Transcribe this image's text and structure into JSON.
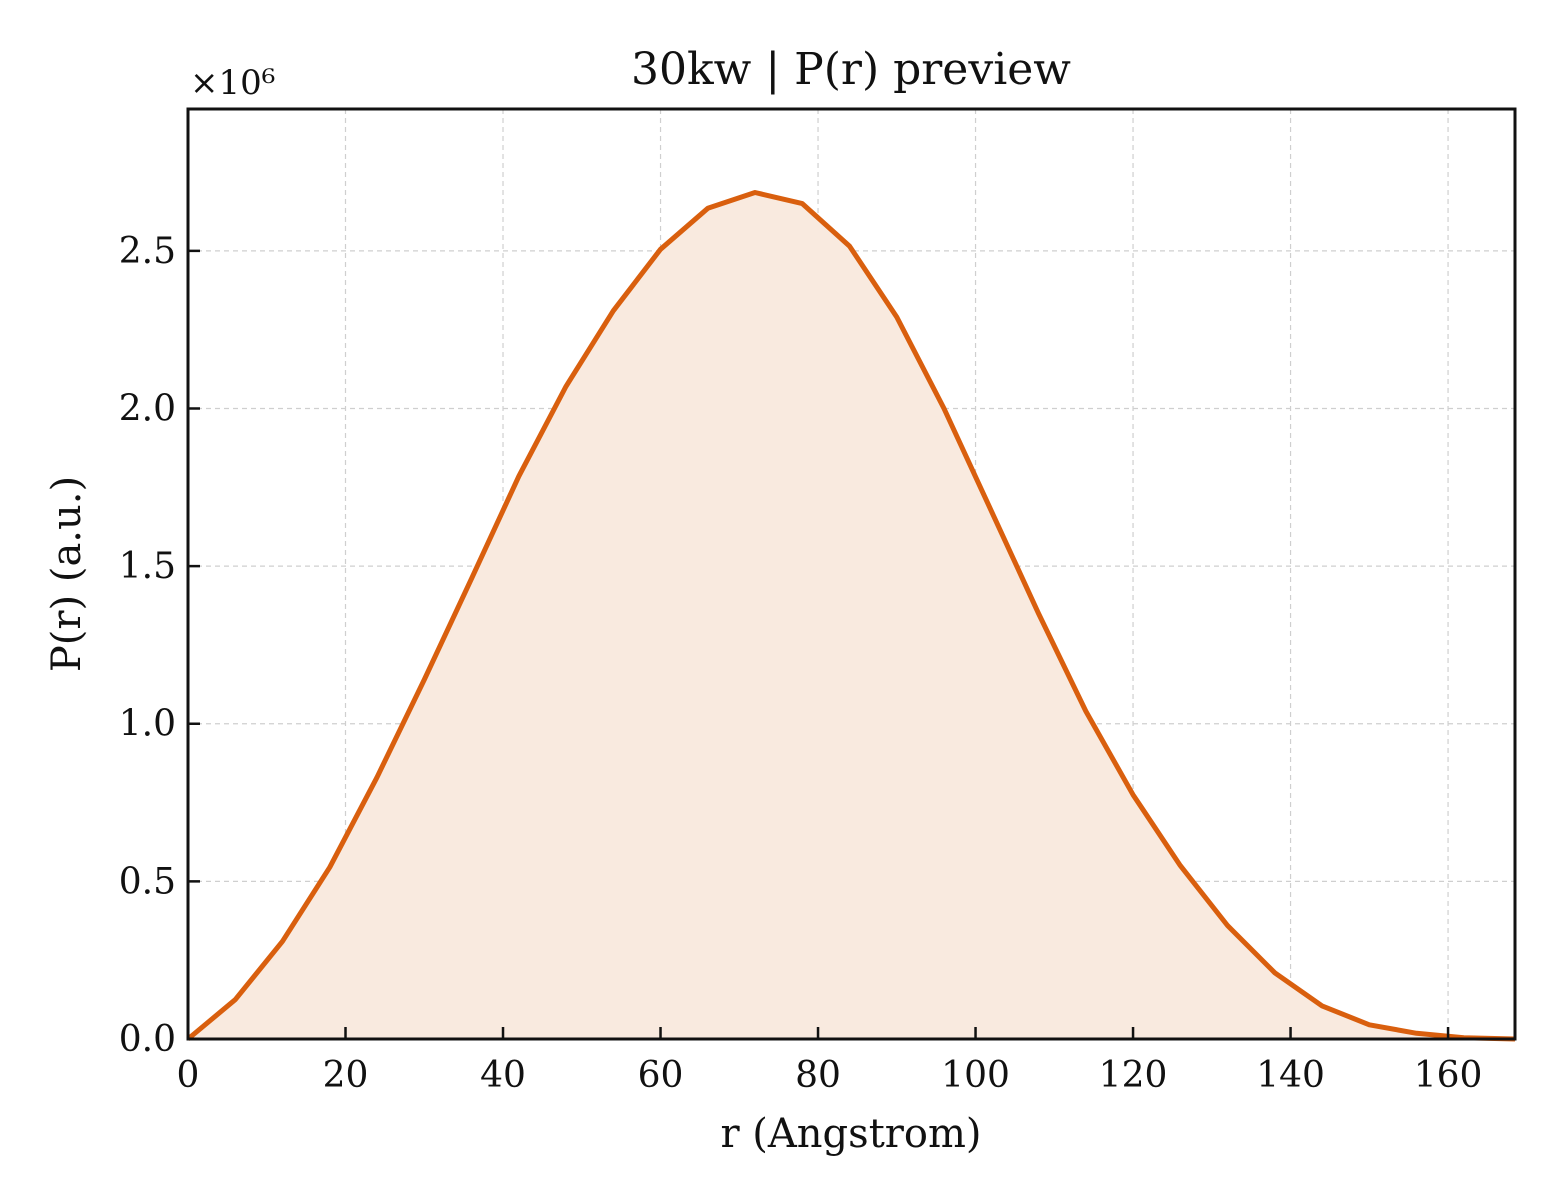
{
  "chart_data": {
    "type": "area",
    "title": "30kw | P(r) preview",
    "xlabel": "r (Angstrom)",
    "ylabel": "P(r) (a.u.)",
    "y_multiplier_label": "×10⁶",
    "xlim": [
      0,
      168.5
    ],
    "ylim": [
      0,
      2.95
    ],
    "x_ticks": [
      0,
      20,
      40,
      60,
      80,
      100,
      120,
      140,
      160
    ],
    "y_ticks": [
      0.0,
      0.5,
      1.0,
      1.5,
      2.0,
      2.5
    ],
    "x_tick_labels": [
      "0",
      "20",
      "40",
      "60",
      "80",
      "100",
      "120",
      "140",
      "160"
    ],
    "y_tick_labels": [
      "0.0",
      "0.5",
      "1.0",
      "1.5",
      "2.0",
      "2.5"
    ],
    "grid": true,
    "line_color": "#d95f0e",
    "fill_color": "#f9eadf",
    "x": [
      0,
      6,
      12,
      18,
      24,
      30,
      36,
      42,
      48,
      54,
      60,
      66,
      72,
      78,
      84,
      90,
      96,
      102,
      108,
      114,
      120,
      126,
      132,
      138,
      144,
      150,
      156,
      162,
      168.5
    ],
    "y": [
      0.0,
      0.125,
      0.31,
      0.545,
      0.83,
      1.14,
      1.46,
      1.785,
      2.07,
      2.31,
      2.505,
      2.635,
      2.685,
      2.65,
      2.515,
      2.29,
      2.0,
      1.675,
      1.35,
      1.04,
      0.775,
      0.55,
      0.36,
      0.21,
      0.105,
      0.045,
      0.018,
      0.004,
      0.0
    ]
  }
}
